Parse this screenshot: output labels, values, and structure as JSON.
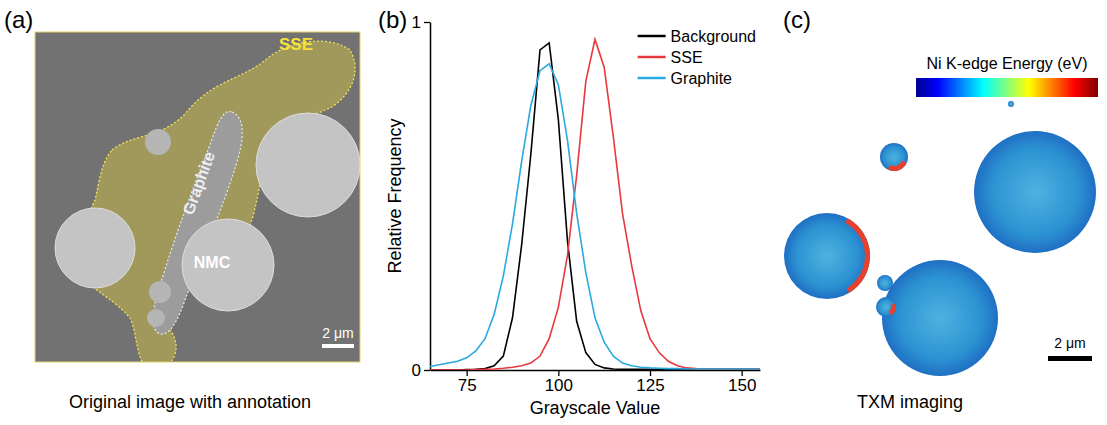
{
  "panels": [
    {
      "label": "(a)",
      "caption": "Original image with annotation",
      "annotations": [
        "SSE",
        "Graphite",
        "NMC"
      ],
      "scale_bar": "2 μm"
    },
    {
      "label": "(b)"
    },
    {
      "label": "(c)",
      "caption": "TXM imaging",
      "colorbar_title": "Ni K-edge Energy (eV)",
      "scale_bar": "2 μm"
    }
  ],
  "chart_data": {
    "type": "line",
    "xlabel": "Grayscale Value",
    "ylabel": "Relative Frequency",
    "x": [
      65,
      67.5,
      70,
      72.5,
      75,
      77.5,
      80,
      82.5,
      85,
      87.5,
      90,
      92.5,
      95,
      97.5,
      100,
      102.5,
      105,
      107.5,
      110,
      112.5,
      115,
      117.5,
      120,
      122.5,
      125,
      127.5,
      130,
      132.5,
      135,
      137.5,
      140,
      142.5,
      145,
      147.5,
      150,
      152.5,
      155
    ],
    "series": [
      {
        "name": "Background",
        "color": "#000000",
        "values": [
          0,
          0,
          0,
          0,
          0.001,
          0.002,
          0.004,
          0.012,
          0.04,
          0.15,
          0.36,
          0.62,
          0.92,
          0.94,
          0.72,
          0.37,
          0.14,
          0.05,
          0.016,
          0.006,
          0.003,
          0.002,
          0.002,
          0.002,
          0.002,
          0.002,
          0.002,
          0.002,
          0.002,
          0.002,
          0.002,
          0.002,
          0.002,
          0.002,
          0.002,
          0.002,
          0.002
        ]
      },
      {
        "name": "SSE",
        "color": "#e8383d",
        "values": [
          0,
          0,
          0,
          0,
          0,
          0.001,
          0.002,
          0.003,
          0.005,
          0.008,
          0.012,
          0.02,
          0.04,
          0.09,
          0.18,
          0.33,
          0.56,
          0.83,
          0.95,
          0.87,
          0.67,
          0.45,
          0.3,
          0.17,
          0.09,
          0.05,
          0.025,
          0.012,
          0.006,
          0.004,
          0.003,
          0.003,
          0.003,
          0.003,
          0.003,
          0.003,
          0.003
        ]
      },
      {
        "name": "Graphite",
        "color": "#2aa8e0",
        "values": [
          0.01,
          0.015,
          0.02,
          0.025,
          0.035,
          0.055,
          0.09,
          0.16,
          0.27,
          0.42,
          0.6,
          0.76,
          0.86,
          0.88,
          0.82,
          0.66,
          0.45,
          0.28,
          0.15,
          0.08,
          0.04,
          0.02,
          0.012,
          0.008,
          0.006,
          0.005,
          0.004,
          0.004,
          0.003,
          0.003,
          0.003,
          0.003,
          0.003,
          0.003,
          0.003,
          0.003,
          0.003
        ]
      }
    ],
    "xlim": [
      65,
      155
    ],
    "ylim": [
      0,
      1
    ],
    "xticks": [
      75,
      100,
      125,
      150
    ],
    "yticks": [
      0,
      1
    ],
    "legend": "upper right"
  }
}
